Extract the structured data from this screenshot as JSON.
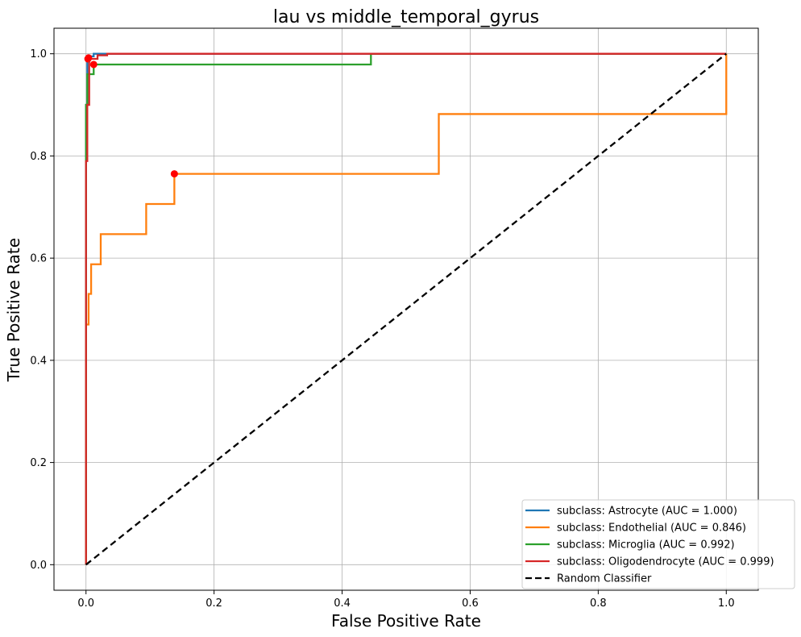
{
  "chart_data": {
    "type": "line",
    "title": "lau vs middle_temporal_gyrus",
    "xlabel": "False Positive Rate",
    "ylabel": "True Positive Rate",
    "xlim": [
      -0.05,
      1.05
    ],
    "ylim": [
      -0.05,
      1.05
    ],
    "xticks": [
      "0.0",
      "0.2",
      "0.4",
      "0.6",
      "0.8",
      "1.0"
    ],
    "yticks": [
      "0.0",
      "0.2",
      "0.4",
      "0.6",
      "0.8",
      "1.0"
    ],
    "grid": true,
    "legend_position": "lower-right",
    "series": [
      {
        "name": "subclass: Astrocyte (AUC = 1.000)",
        "color": "#1f77b4",
        "style": "solid",
        "x": [
          0,
          0,
          0.002,
          0.002,
          0.005,
          0.005,
          0.012,
          0.012,
          0.03,
          1.0
        ],
        "y": [
          0,
          0.9,
          0.9,
          0.985,
          0.985,
          0.995,
          0.995,
          1.0,
          1.0,
          1.0
        ],
        "marker": {
          "x": 0.003,
          "y": 0.99
        }
      },
      {
        "name": "subclass: Endothelial (AUC = 0.846)",
        "color": "#ff7f0e",
        "style": "solid",
        "x": [
          0,
          0,
          0.004,
          0.004,
          0.008,
          0.008,
          0.023,
          0.023,
          0.094,
          0.094,
          0.138,
          0.138,
          0.551,
          0.551,
          1.0,
          1.0
        ],
        "y": [
          0,
          0.47,
          0.47,
          0.53,
          0.53,
          0.588,
          0.588,
          0.647,
          0.647,
          0.706,
          0.706,
          0.765,
          0.765,
          0.882,
          0.882,
          1.0
        ],
        "marker": {
          "x": 0.138,
          "y": 0.765
        }
      },
      {
        "name": "subclass: Microglia (AUC = 0.992)",
        "color": "#2ca02c",
        "style": "solid",
        "x": [
          0,
          0,
          0.002,
          0.002,
          0.006,
          0.006,
          0.012,
          0.012,
          0.445,
          0.445,
          1.0
        ],
        "y": [
          0,
          0.9,
          0.9,
          0.96,
          0.96,
          0.96,
          0.96,
          0.979,
          0.979,
          1.0,
          1.0
        ],
        "marker": {
          "x": 0.012,
          "y": 0.979
        }
      },
      {
        "name": "subclass: Oligodendrocyte (AUC = 0.999)",
        "color": "#d62728",
        "style": "solid",
        "x": [
          0,
          0,
          0.002,
          0.002,
          0.005,
          0.005,
          0.018,
          0.018,
          0.033,
          0.033,
          1.0
        ],
        "y": [
          0,
          0.79,
          0.79,
          0.9,
          0.9,
          0.99,
          0.99,
          0.997,
          0.997,
          1.0,
          1.0
        ],
        "marker": {
          "x": 0.004,
          "y": 0.992
        }
      },
      {
        "name": "Random Classifier",
        "color": "#000000",
        "style": "dashed",
        "x": [
          0,
          1
        ],
        "y": [
          0,
          1
        ]
      }
    ]
  }
}
